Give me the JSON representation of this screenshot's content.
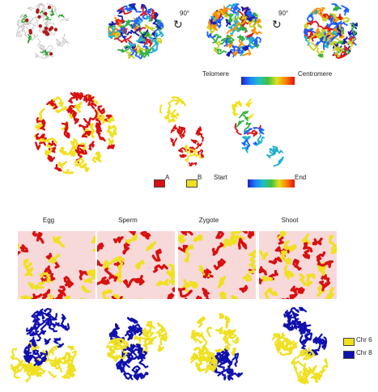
{
  "top_row": {
    "rotation_1": "90°",
    "rotation_2": "90°",
    "gradient_left_label": "Telomere",
    "gradient_right_label": "Centromere"
  },
  "middle_row": {
    "legend_a_label": "A",
    "legend_b_label": "B",
    "gradient_left_label": "Start",
    "gradient_right_label": "End"
  },
  "bottom_section": {
    "columns": [
      "Egg",
      "Sperm",
      "Zygote",
      "Shoot"
    ],
    "legend": [
      {
        "label": "Chr 6",
        "color": "#f0e020"
      },
      {
        "label": "Chr 8",
        "color": "#1010b0"
      }
    ]
  },
  "colors": {
    "compartment_a": "#d81010",
    "compartment_b": "#f0e020",
    "chr6": "#f0e020",
    "chr8": "#1010b0",
    "gray": "#c8c8c8",
    "green": "#20a020"
  }
}
